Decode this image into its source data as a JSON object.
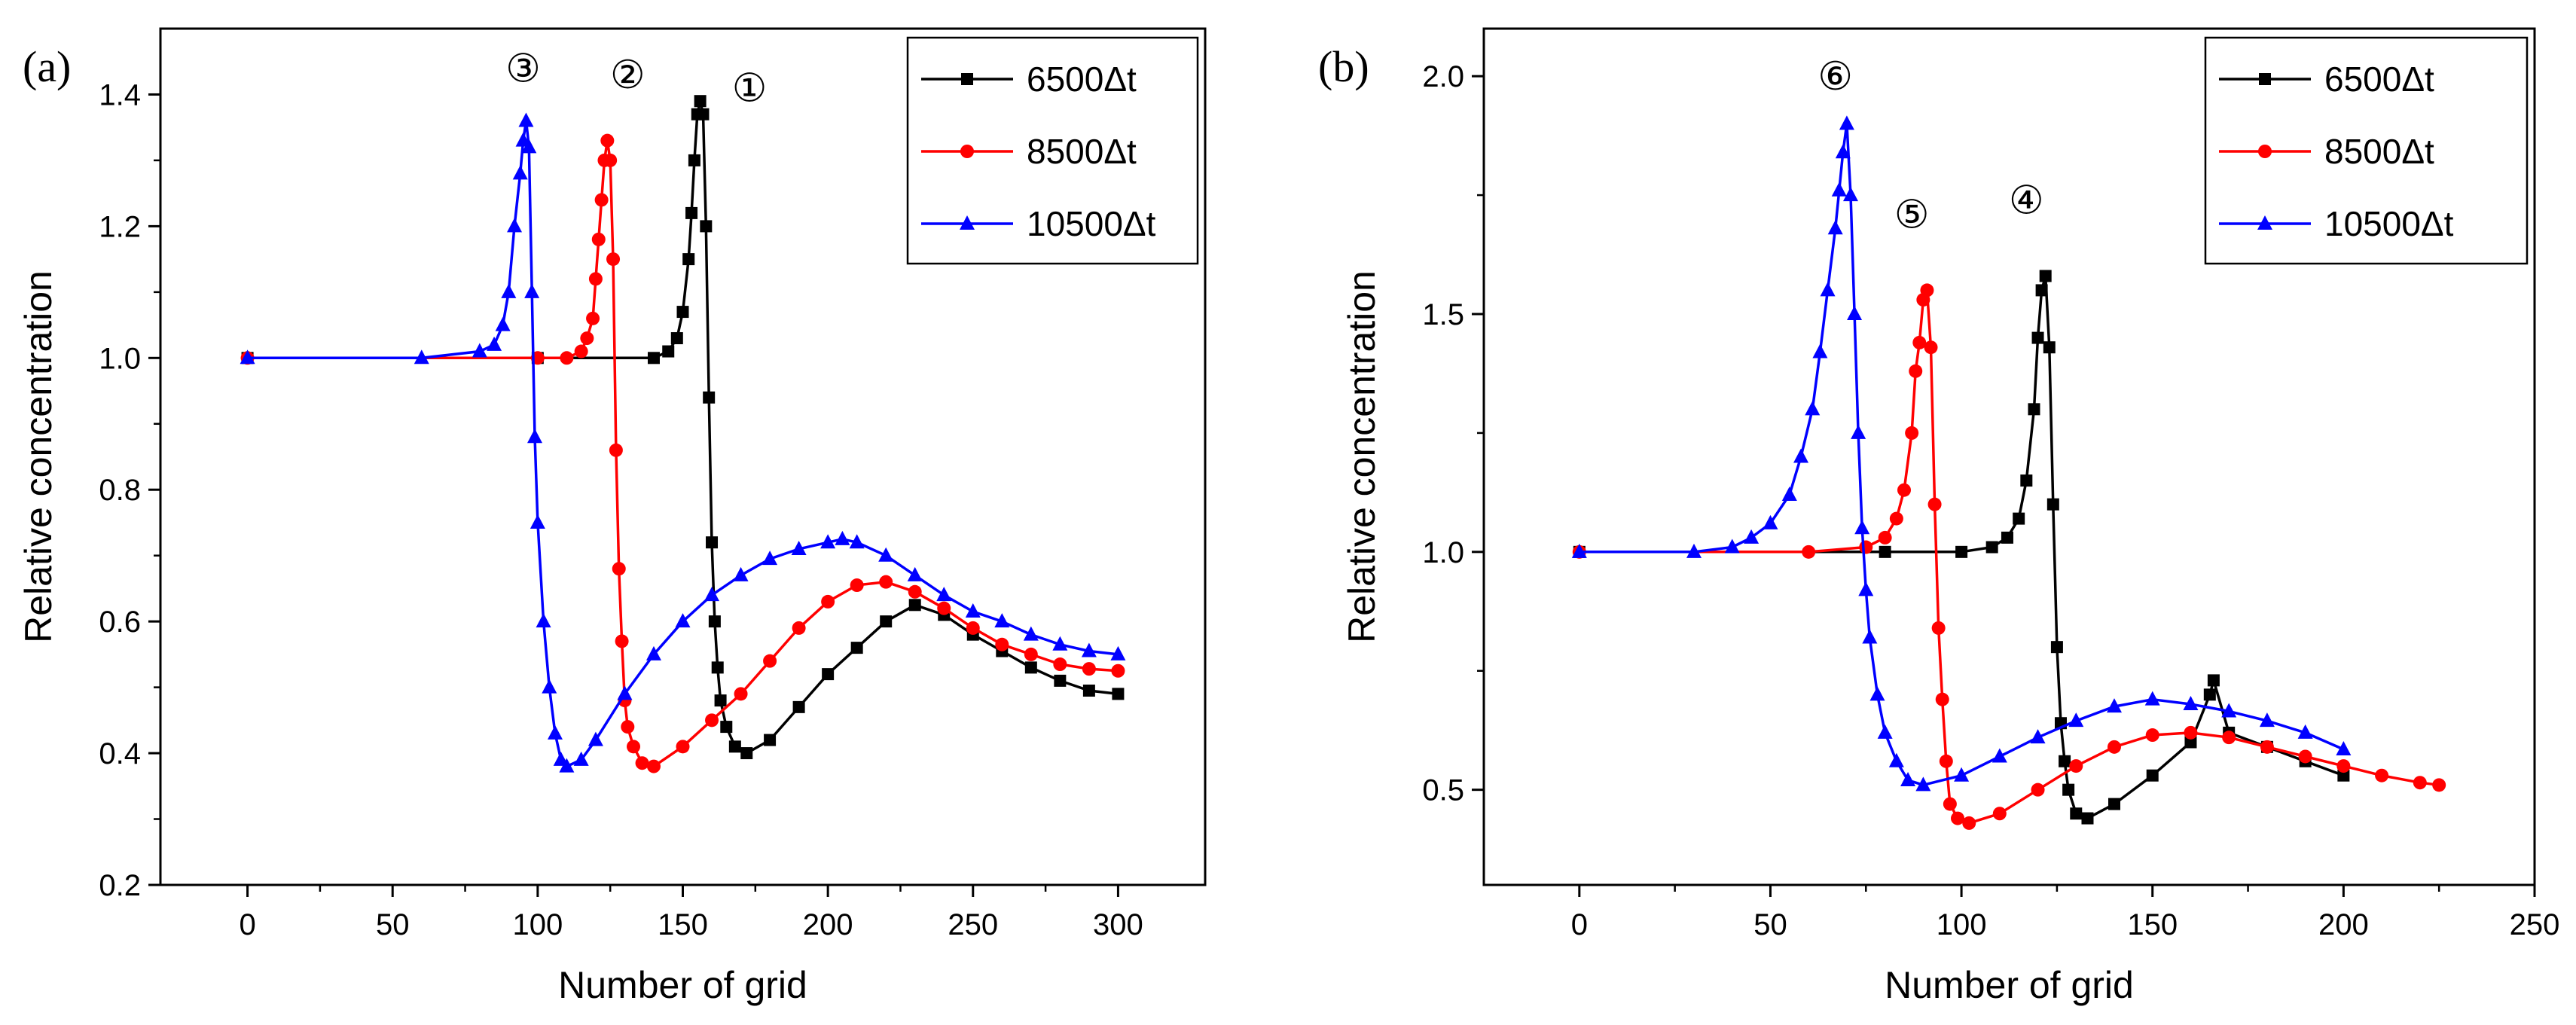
{
  "figure": {
    "panels": [
      {
        "id": "a",
        "panel_label": "(a)",
        "chart_data": {
          "type": "line",
          "title": "",
          "xlabel": "Number of grid",
          "ylabel": "Relative concentration",
          "xlim": [
            -30,
            330
          ],
          "ylim": [
            0.2,
            1.5
          ],
          "xticks": [
            0,
            50,
            100,
            150,
            200,
            250,
            300
          ],
          "xtick_labels": [
            "0",
            "50",
            "100",
            "150",
            "200",
            "250",
            "300"
          ],
          "yticks": [
            0.2,
            0.4,
            0.6,
            0.8,
            1.0,
            1.2,
            1.4
          ],
          "ytick_labels": [
            "0.2",
            "0.4",
            "0.6",
            "0.8",
            "1.0",
            "1.2",
            "1.4"
          ],
          "grid": false,
          "legend_position": "top-right",
          "series": [
            {
              "name": "6500Δt",
              "color": "#000000",
              "marker": "square",
              "x": [
                0,
                100,
                140,
                145,
                148,
                150,
                152,
                153,
                154,
                155,
                156,
                157,
                158,
                159,
                160,
                161,
                162,
                163,
                165,
                168,
                172,
                180,
                190,
                200,
                210,
                220,
                230,
                240,
                250,
                260,
                270,
                280,
                290,
                300
              ],
              "y": [
                1.0,
                1.0,
                1.0,
                1.01,
                1.03,
                1.07,
                1.15,
                1.22,
                1.3,
                1.37,
                1.39,
                1.37,
                1.2,
                0.94,
                0.72,
                0.6,
                0.53,
                0.48,
                0.44,
                0.41,
                0.4,
                0.42,
                0.47,
                0.52,
                0.56,
                0.6,
                0.625,
                0.61,
                0.58,
                0.555,
                0.53,
                0.51,
                0.495,
                0.49
              ]
            },
            {
              "name": "8500Δt",
              "color": "#ff0000",
              "marker": "circle",
              "x": [
                0,
                100,
                110,
                115,
                117,
                119,
                120,
                121,
                122,
                123,
                124,
                125,
                126,
                127,
                128,
                129,
                130,
                131,
                133,
                136,
                140,
                150,
                160,
                170,
                180,
                190,
                200,
                210,
                220,
                230,
                240,
                250,
                260,
                270,
                280,
                290,
                300
              ],
              "y": [
                1.0,
                1.0,
                1.0,
                1.01,
                1.03,
                1.06,
                1.12,
                1.18,
                1.24,
                1.3,
                1.33,
                1.3,
                1.15,
                0.86,
                0.68,
                0.57,
                0.48,
                0.44,
                0.41,
                0.385,
                0.38,
                0.41,
                0.45,
                0.49,
                0.54,
                0.59,
                0.63,
                0.655,
                0.66,
                0.645,
                0.62,
                0.59,
                0.565,
                0.55,
                0.535,
                0.528,
                0.525
              ]
            },
            {
              "name": "10500Δt",
              "color": "#0000ff",
              "marker": "triangle",
              "x": [
                0,
                60,
                80,
                85,
                88,
                90,
                92,
                94,
                95,
                96,
                97,
                98,
                99,
                100,
                102,
                104,
                106,
                108,
                110,
                115,
                120,
                130,
                140,
                150,
                160,
                170,
                180,
                190,
                200,
                205,
                210,
                220,
                230,
                240,
                250,
                260,
                270,
                280,
                290,
                300
              ],
              "y": [
                1.0,
                1.0,
                1.01,
                1.02,
                1.05,
                1.1,
                1.2,
                1.28,
                1.33,
                1.36,
                1.32,
                1.1,
                0.88,
                0.75,
                0.6,
                0.5,
                0.43,
                0.39,
                0.38,
                0.39,
                0.42,
                0.49,
                0.55,
                0.6,
                0.64,
                0.67,
                0.695,
                0.71,
                0.72,
                0.725,
                0.72,
                0.7,
                0.67,
                0.64,
                0.615,
                0.6,
                0.58,
                0.565,
                0.555,
                0.55
              ]
            }
          ],
          "annotations": [
            {
              "text": "③",
              "x": 95,
              "y": 1.44
            },
            {
              "text": "②",
              "x": 131,
              "y": 1.43
            },
            {
              "text": "①",
              "x": 173,
              "y": 1.41
            }
          ]
        }
      },
      {
        "id": "b",
        "panel_label": "(b)",
        "chart_data": {
          "type": "line",
          "title": "",
          "xlabel": "Number of grid",
          "ylabel": "Relative concentration",
          "xlim": [
            -25,
            250
          ],
          "ylim": [
            0.3,
            2.1
          ],
          "xticks": [
            0,
            50,
            100,
            150,
            200,
            250
          ],
          "xtick_labels": [
            "0",
            "50",
            "100",
            "150",
            "200",
            "250"
          ],
          "yticks": [
            0.5,
            1.0,
            1.5,
            2.0
          ],
          "ytick_labels": [
            "0.5",
            "1.0",
            "1.5",
            "2.0"
          ],
          "grid": false,
          "legend_position": "top-right",
          "series": [
            {
              "name": "6500Δt",
              "color": "#000000",
              "marker": "square",
              "x": [
                0,
                80,
                100,
                108,
                112,
                115,
                117,
                119,
                120,
                121,
                122,
                123,
                124,
                125,
                126,
                127,
                128,
                130,
                133,
                140,
                150,
                160,
                165,
                166,
                170,
                180,
                190,
                200
              ],
              "y": [
                1.0,
                1.0,
                1.0,
                1.01,
                1.03,
                1.07,
                1.15,
                1.3,
                1.45,
                1.55,
                1.58,
                1.43,
                1.1,
                0.8,
                0.64,
                0.56,
                0.5,
                0.45,
                0.44,
                0.47,
                0.53,
                0.6,
                0.7,
                0.73,
                0.62,
                0.59,
                0.56,
                0.53
              ]
            },
            {
              "name": "8500Δt",
              "color": "#ff0000",
              "marker": "circle",
              "x": [
                0,
                60,
                75,
                80,
                83,
                85,
                87,
                88,
                89,
                90,
                91,
                92,
                93,
                94,
                95,
                96,
                97,
                99,
                102,
                110,
                120,
                130,
                140,
                150,
                160,
                170,
                180,
                190,
                200,
                210,
                220,
                225
              ],
              "y": [
                1.0,
                1.0,
                1.01,
                1.03,
                1.07,
                1.13,
                1.25,
                1.38,
                1.44,
                1.53,
                1.55,
                1.43,
                1.1,
                0.84,
                0.69,
                0.56,
                0.47,
                0.44,
                0.43,
                0.45,
                0.5,
                0.55,
                0.59,
                0.615,
                0.62,
                0.61,
                0.59,
                0.57,
                0.55,
                0.53,
                0.515,
                0.51
              ]
            },
            {
              "name": "10500Δt",
              "color": "#0000ff",
              "marker": "triangle",
              "x": [
                0,
                30,
                40,
                45,
                50,
                55,
                58,
                61,
                63,
                65,
                67,
                68,
                69,
                70,
                71,
                72,
                73,
                74,
                75,
                76,
                78,
                80,
                83,
                86,
                90,
                100,
                110,
                120,
                130,
                140,
                150,
                160,
                170,
                180,
                190,
                200
              ],
              "y": [
                1.0,
                1.0,
                1.01,
                1.03,
                1.06,
                1.12,
                1.2,
                1.3,
                1.42,
                1.55,
                1.68,
                1.76,
                1.84,
                1.9,
                1.75,
                1.5,
                1.25,
                1.05,
                0.92,
                0.82,
                0.7,
                0.62,
                0.56,
                0.52,
                0.51,
                0.53,
                0.57,
                0.61,
                0.645,
                0.675,
                0.69,
                0.68,
                0.665,
                0.645,
                0.62,
                0.585
              ]
            }
          ],
          "annotations": [
            {
              "text": "⑥",
              "x": 67,
              "y": 2.0
            },
            {
              "text": "⑤",
              "x": 87,
              "y": 1.71
            },
            {
              "text": "④",
              "x": 117,
              "y": 1.74
            }
          ]
        }
      }
    ]
  }
}
